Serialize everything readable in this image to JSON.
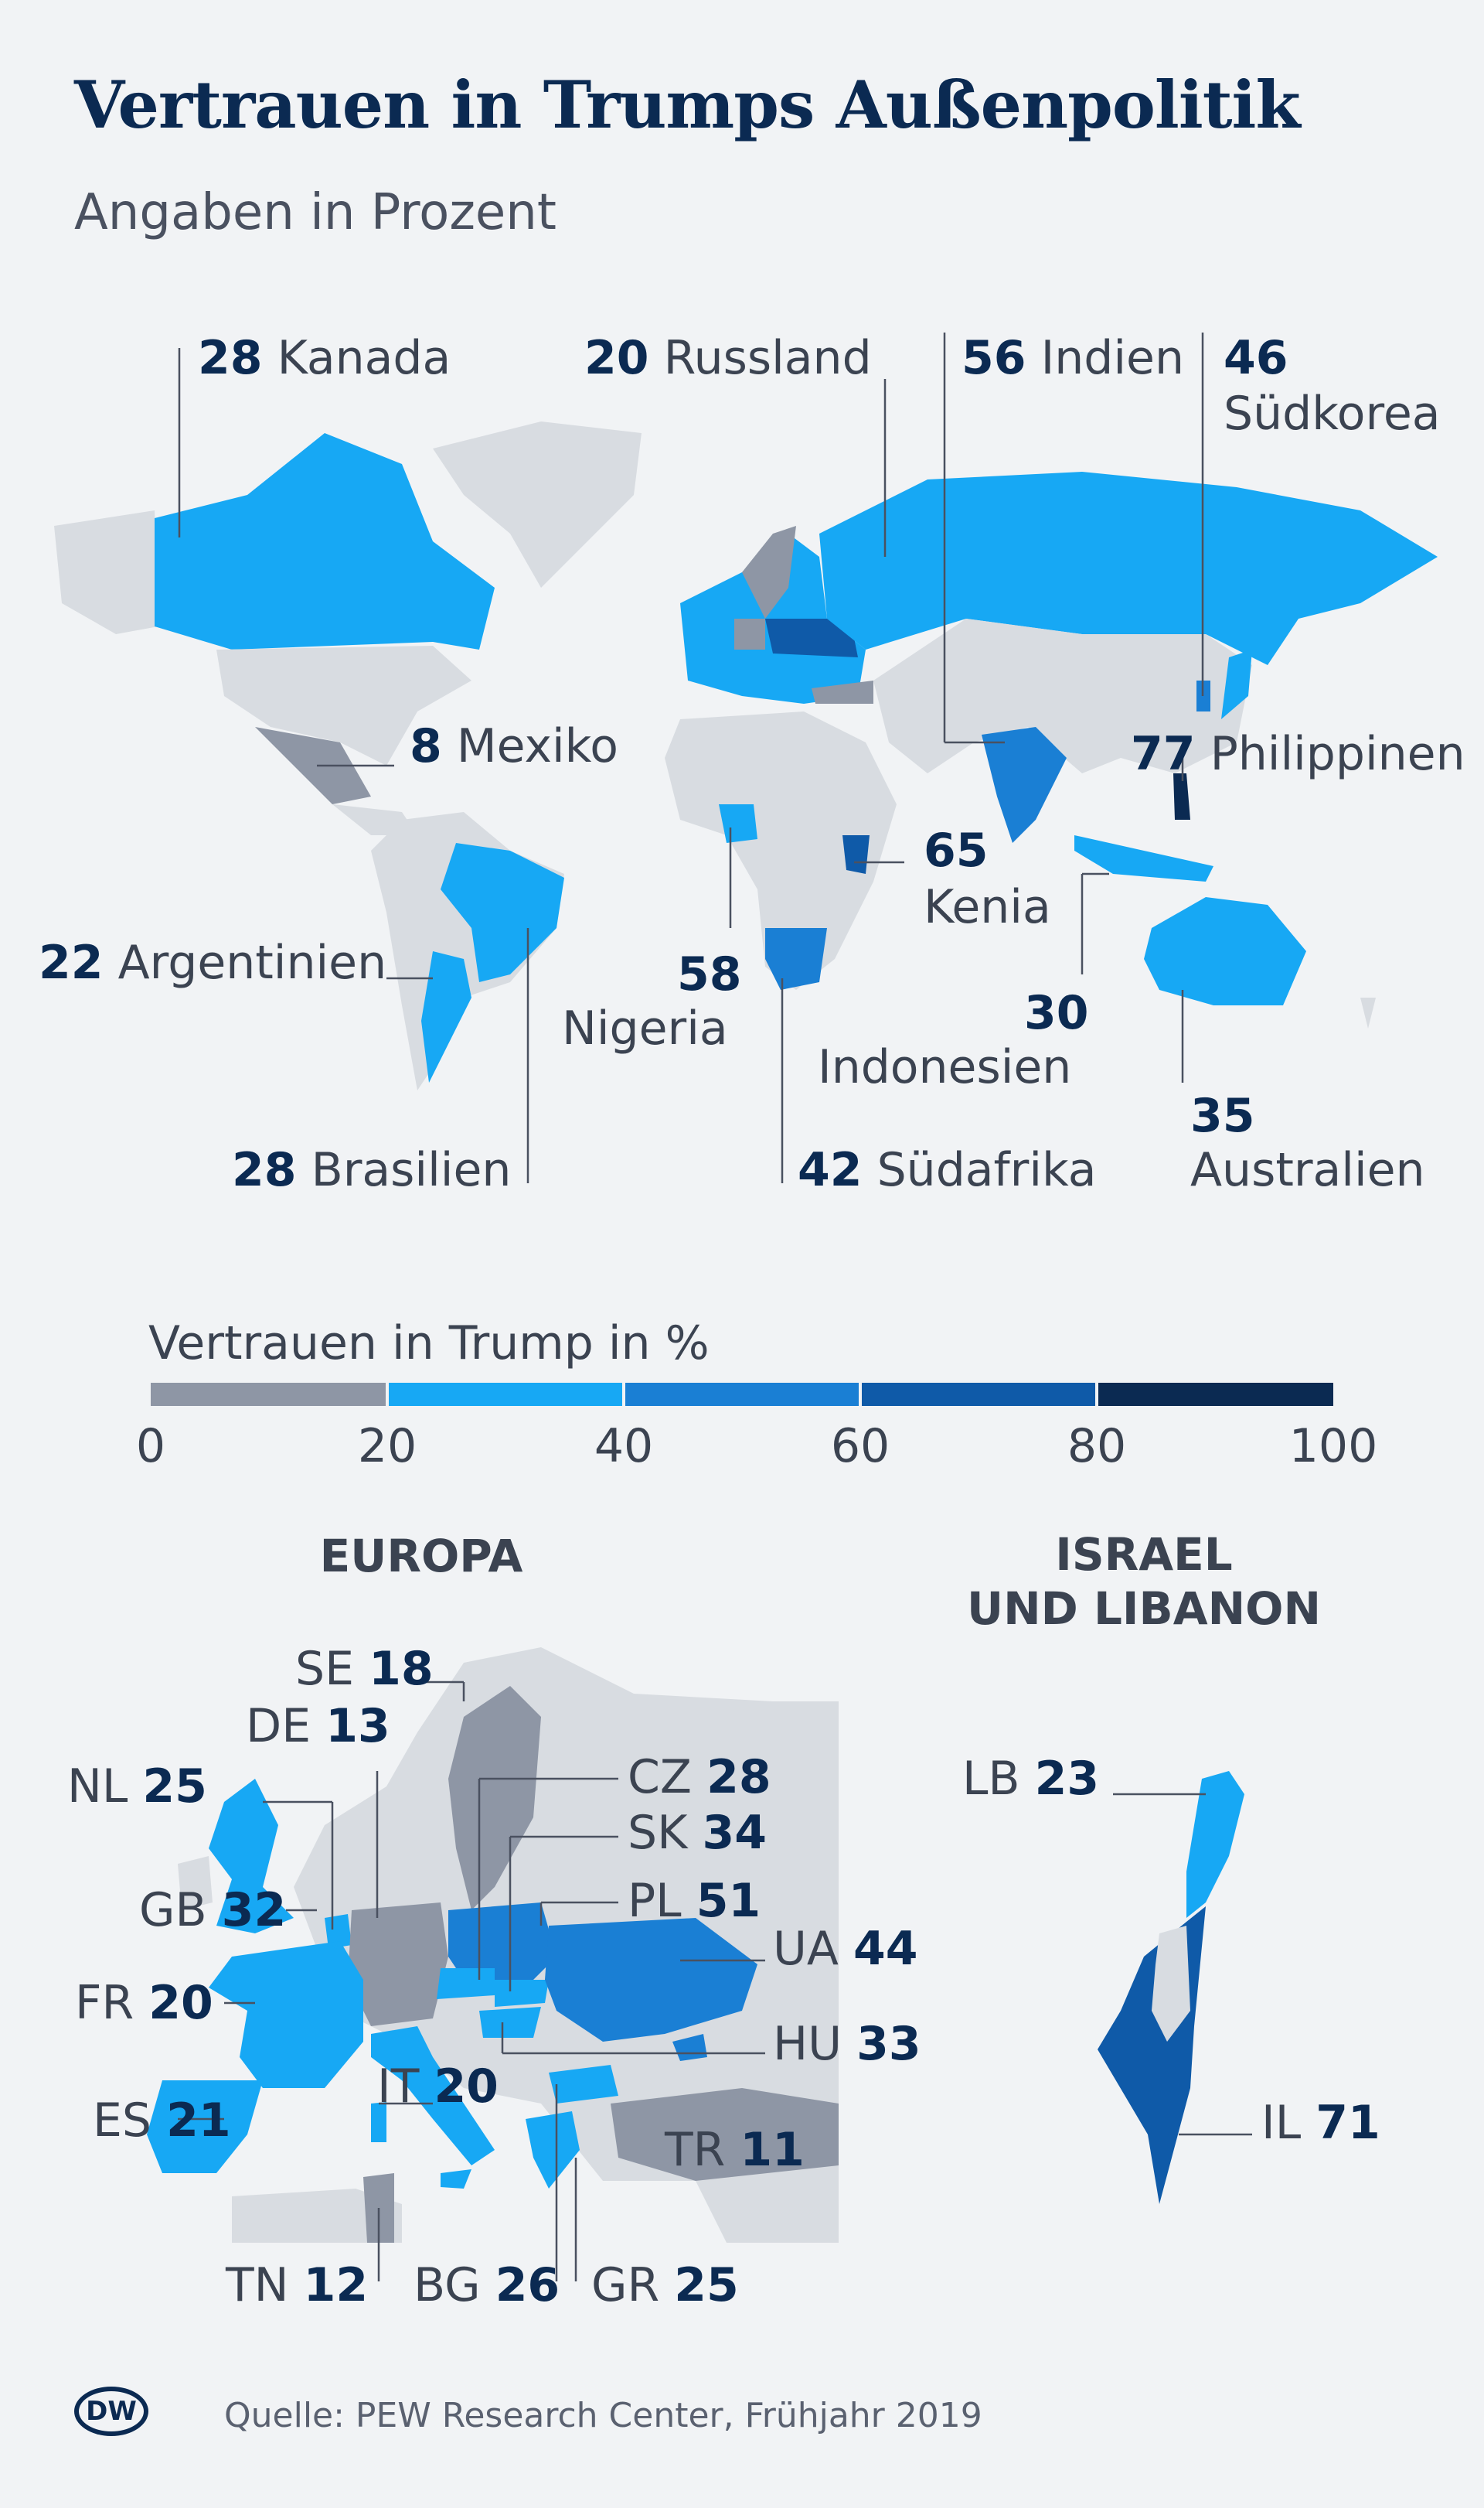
{
  "title": "Vertrauen in Trumps Außenpolitik",
  "subtitle": "Angaben in Prozent",
  "colors": {
    "0-20": "#8e96a5",
    "20-40": "#17a8f4",
    "40-60": "#1a7fd4",
    "60-80": "#0f5aa8",
    "80-100": "#0b2a52",
    "no_data": "#d8dce1"
  },
  "world_labels": [
    {
      "id": "kanada",
      "value": "28",
      "name": "Kanada"
    },
    {
      "id": "russland",
      "value": "20",
      "name": "Russland"
    },
    {
      "id": "indien",
      "value": "56",
      "name": "Indien"
    },
    {
      "id": "suedkorea",
      "value": "46",
      "name": "Südkorea"
    },
    {
      "id": "mexiko",
      "value": "8",
      "name": "Mexiko"
    },
    {
      "id": "philippinen",
      "value": "77",
      "name": "Philippinen"
    },
    {
      "id": "kenia",
      "value": "65",
      "name": "Kenia"
    },
    {
      "id": "argentinien",
      "value": "22",
      "name": "Argentinien"
    },
    {
      "id": "nigeria",
      "value": "58",
      "name": "Nigeria"
    },
    {
      "id": "indonesien",
      "value": "30",
      "name": "Indonesien"
    },
    {
      "id": "australien",
      "value": "35",
      "name": "Australien"
    },
    {
      "id": "brasilien",
      "value": "28",
      "name": "Brasilien"
    },
    {
      "id": "suedafrika",
      "value": "42",
      "name": "Südafrika"
    }
  ],
  "legend": {
    "title": "Vertrauen in Trump in %",
    "ticks": [
      "0",
      "20",
      "40",
      "60",
      "80",
      "100"
    ]
  },
  "europe": {
    "heading": "EUROPA",
    "labels": [
      {
        "id": "se",
        "code": "SE",
        "value": "18"
      },
      {
        "id": "de",
        "code": "DE",
        "value": "13"
      },
      {
        "id": "cz",
        "code": "CZ",
        "value": "28"
      },
      {
        "id": "nl",
        "code": "NL",
        "value": "25"
      },
      {
        "id": "sk",
        "code": "SK",
        "value": "34"
      },
      {
        "id": "gb",
        "code": "GB",
        "value": "32"
      },
      {
        "id": "pl",
        "code": "PL",
        "value": "51"
      },
      {
        "id": "ua",
        "code": "UA",
        "value": "44"
      },
      {
        "id": "fr",
        "code": "FR",
        "value": "20"
      },
      {
        "id": "hu",
        "code": "HU",
        "value": "33"
      },
      {
        "id": "it",
        "code": "IT",
        "value": "20"
      },
      {
        "id": "es",
        "code": "ES",
        "value": "21"
      },
      {
        "id": "tr",
        "code": "TR",
        "value": "11"
      },
      {
        "id": "tn",
        "code": "TN",
        "value": "12"
      },
      {
        "id": "bg",
        "code": "BG",
        "value": "26"
      },
      {
        "id": "gr",
        "code": "GR",
        "value": "25"
      }
    ]
  },
  "israel": {
    "heading_line1": "ISRAEL",
    "heading_line2": "UND LIBANON",
    "labels": [
      {
        "id": "lb",
        "code": "LB",
        "value": "23"
      },
      {
        "id": "il",
        "code": "IL",
        "value": "71"
      }
    ]
  },
  "source": "Quelle: PEW Research Center, Frühjahr 2019",
  "logo": "DW"
}
